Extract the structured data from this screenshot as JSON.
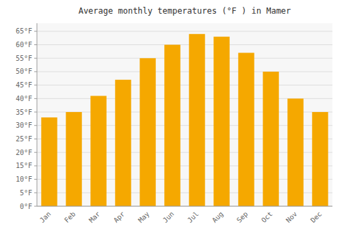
{
  "chart_data": {
    "type": "bar",
    "title": "Average monthly temperatures (°F ) in Mamer",
    "categories": [
      "Jan",
      "Feb",
      "Mar",
      "Apr",
      "May",
      "Jun",
      "Jul",
      "Aug",
      "Sep",
      "Oct",
      "Nov",
      "Dec"
    ],
    "values": [
      33,
      35,
      41,
      47,
      55,
      60,
      64,
      63,
      57,
      50,
      40,
      35
    ],
    "color": "#F5A800",
    "ylim": [
      0,
      68
    ],
    "yticks": [
      {
        "value": 0,
        "label": "0°F"
      },
      {
        "value": 5,
        "label": "5°F"
      },
      {
        "value": 10,
        "label": "10°F"
      },
      {
        "value": 15,
        "label": "15°F"
      },
      {
        "value": 20,
        "label": "20°F"
      },
      {
        "value": 25,
        "label": "25°F"
      },
      {
        "value": 30,
        "label": "30°F"
      },
      {
        "value": 35,
        "label": "35°F"
      },
      {
        "value": 40,
        "label": "40°F"
      },
      {
        "value": 45,
        "label": "45°F"
      },
      {
        "value": 50,
        "label": "50°F"
      },
      {
        "value": 55,
        "label": "55°F"
      },
      {
        "value": 60,
        "label": "60°F"
      },
      {
        "value": 65,
        "label": "65°F"
      }
    ],
    "grid": true
  }
}
